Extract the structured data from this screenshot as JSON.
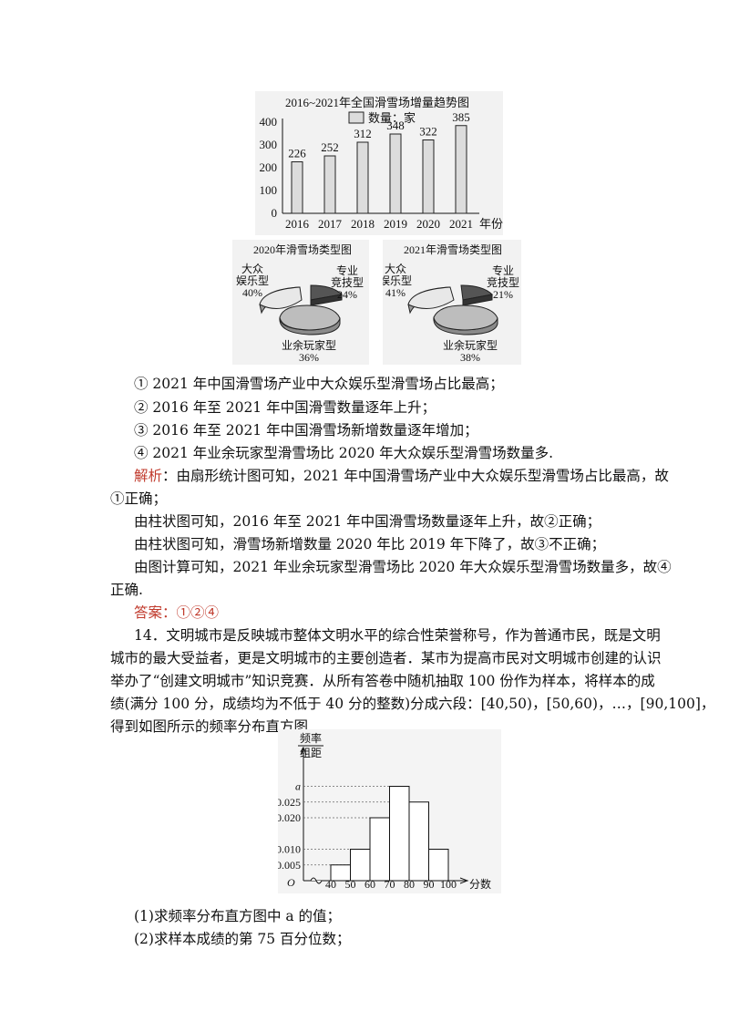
{
  "bar_chart": {
    "chart_data": {
      "type": "bar",
      "title": "2016~2021年全国滑雪场增量趋势图",
      "legend": "数量：家",
      "categories": [
        "2016",
        "2017",
        "2018",
        "2019",
        "2020",
        "2021"
      ],
      "values": [
        226,
        252,
        312,
        348,
        322,
        385
      ],
      "xlabel": "年份",
      "yticks": [
        "0",
        "100",
        "200",
        "300",
        "400"
      ],
      "ylim": [
        0,
        420
      ]
    }
  },
  "pie_2020": {
    "chart_data": {
      "type": "pie",
      "title": "2020年滑雪场类型图",
      "slices": [
        {
          "label_lines": [
            "大众",
            "娱乐型",
            "40%"
          ],
          "value": 40
        },
        {
          "label_lines": [
            "专业",
            "竞技型",
            "24%"
          ],
          "value": 24
        },
        {
          "label_lines": [
            "业余玩家型",
            "36%"
          ],
          "value": 36
        }
      ]
    }
  },
  "pie_2021": {
    "chart_data": {
      "type": "pie",
      "title": "2021年滑雪场类型图",
      "slices": [
        {
          "label_lines": [
            "大众",
            "娱乐型",
            "41%"
          ],
          "value": 41
        },
        {
          "label_lines": [
            "专业",
            "竞技型",
            "21%"
          ],
          "value": 21
        },
        {
          "label_lines": [
            "业余玩家型",
            "38%"
          ],
          "value": 38
        }
      ]
    }
  },
  "statements": [
    "① 2021 年中国滑雪场产业中大众娱乐型滑雪场占比最高；",
    "② 2016 年至 2021 年中国滑雪数量逐年上升；",
    "③ 2016 年至 2021 年中国滑雪场新增数量逐年增加；",
    "④ 2021 年业余玩家型滑雪场比 2020 年大众娱乐型滑雪场数量多."
  ],
  "analysis": {
    "label": "解析",
    "line1": "：由扇形统计图可知，2021 年中国滑雪场产业中大众娱乐型滑雪场占比最高，故",
    "line1b": "①正确；",
    "line2": "由柱状图可知，2016 年至 2021 年中国滑雪场数量逐年上升，故②正确；",
    "line3": "由柱状图可知，滑雪场新增数量 2020 年比 2019 年下降了，故③不正确；",
    "line4": "由图计算可知，2021 年业余玩家型滑雪场比 2020 年大众娱乐型滑雪场数量多，故④",
    "line4b": "正确."
  },
  "answer": {
    "label": "答案",
    "value": "：①②④"
  },
  "q14": {
    "line1": "14．文明城市是反映城市整体文明水平的综合性荣誉称号，作为普通市民，既是文明",
    "line2": "城市的最大受益者，更是文明城市的主要创造者．某市为提高市民对文明城市创建的认识",
    "line3": "举办了“创建文明城市”知识竞赛．从所有答卷中随机抽取 100 份作为样本，将样本的成",
    "line4": "绩(满分 100 分，成绩均为不低于 40 分的整数)分成六段：[40,50)，[50,60)，…，[90,100]，",
    "line5": "得到如图所示的频率分布直方图．"
  },
  "histogram": {
    "chart_data": {
      "type": "bar",
      "ylabel_top": "频率",
      "ylabel_bottom": "组距",
      "xlabel": "分数",
      "origin": "O",
      "bins": [
        [
          40,
          50
        ],
        [
          50,
          60
        ],
        [
          60,
          70
        ],
        [
          70,
          80
        ],
        [
          80,
          90
        ],
        [
          90,
          100
        ]
      ],
      "x_ticks": [
        "40",
        "50",
        "60",
        "70",
        "80",
        "90",
        "100"
      ],
      "y_ticks": [
        {
          "label": "a",
          "value": 0.03
        },
        {
          "label": "0.025",
          "value": 0.025
        },
        {
          "label": "0.020",
          "value": 0.02
        },
        {
          "label": "0.010",
          "value": 0.01
        },
        {
          "label": "0.005",
          "value": 0.005
        }
      ],
      "values": [
        0.005,
        0.01,
        0.02,
        0.03,
        0.025,
        0.01
      ]
    }
  },
  "questions": [
    "(1)求频率分布直方图中 a 的值；",
    "(2)求样本成绩的第 75 百分位数；"
  ]
}
